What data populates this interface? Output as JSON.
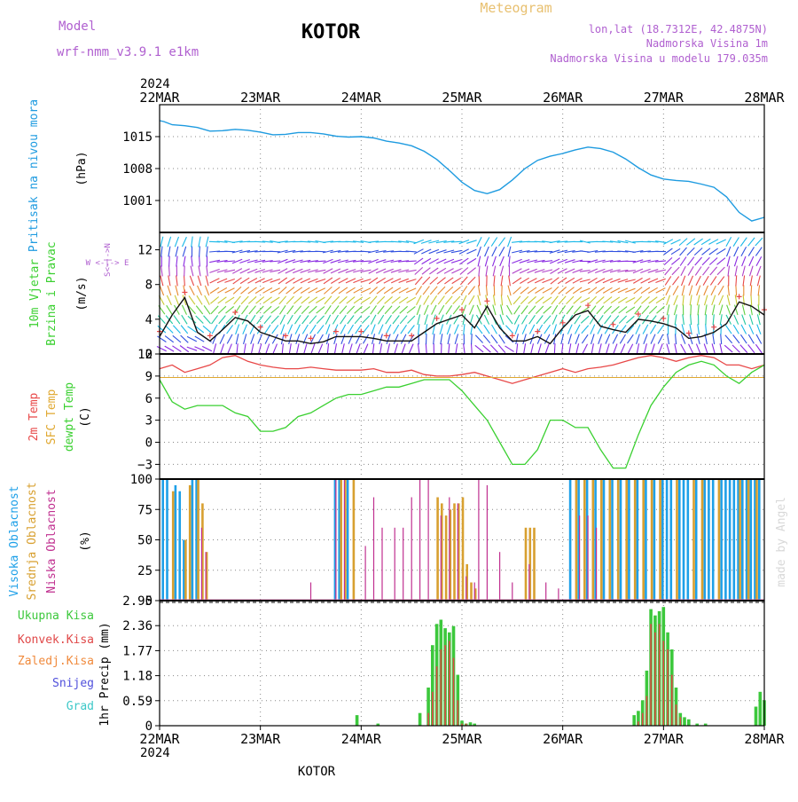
{
  "header": {
    "model_label": "Model",
    "model_name": "wrf-nmm_v3.9.1  e1km",
    "station": "KOTOR",
    "meteogram_label": "Meteogram",
    "lonlat": "lon,lat (18.7312E, 42.4875N)",
    "elev": "Nadmorska Visina 1m",
    "elev_model": "Nadmorska Visina u modelu 179.035m"
  },
  "footer": {
    "station": "KOTOR",
    "watermark": "made by Angel"
  },
  "time_axis": {
    "year": "2024",
    "labels": [
      "22MAR",
      "23MAR",
      "24MAR",
      "25MAR",
      "26MAR",
      "27MAR",
      "28MAR"
    ]
  },
  "panels": {
    "pressure": {
      "label1": "Pritisak na nivou mora",
      "unit": "(hPa)"
    },
    "wind": {
      "label1": "10m Vjetar",
      "label2": "Brzina i Pravac",
      "unit": "(m/s)",
      "compass": "W <-|-> E",
      "compass_v": "S<-|->N"
    },
    "temp": {
      "label1": "2m Temp",
      "label2": "SFC Temp",
      "label3": "dewpt Temp",
      "unit": "(C)"
    },
    "cloud": {
      "label1": "Visoka Oblacnost",
      "label2": "Srednja Oblacnost",
      "label3": "Niska Oblacnost",
      "unit": "(%)"
    },
    "precip": {
      "unit": "1hr Precip (mm)",
      "legend": [
        "Ukupna Kisa",
        "Konvek.Kisa",
        "Zaledj.Kisa",
        "Snijeg",
        "Grad"
      ]
    }
  },
  "colors": {
    "pressure": "#1e9be0",
    "temp2m": "#e84848",
    "sfc": "#e0a830",
    "dewpt": "#3ad030",
    "cloud_high": "#1ea0e8",
    "cloud_mid": "#d8a030",
    "cloud_low": "#c03090",
    "precip_total": "#3cc83c",
    "precip_conv": "#e04848",
    "legend_frozen": "#f08a3c",
    "legend_snow": "#5050dc",
    "legend_hail": "#3cc8c8",
    "purple_text": "#b060d0",
    "orange_text": "#e8c070"
  },
  "chart_data": [
    {
      "type": "line",
      "panel": "pressure",
      "x_unit": "hours since 22MAR 00UTC",
      "ylim": [
        994,
        1022
      ],
      "yticks": [
        "1001",
        "1008",
        "1015"
      ],
      "x": [
        0,
        1,
        3,
        6,
        9,
        12,
        15,
        18,
        21,
        24,
        27,
        30,
        33,
        36,
        39,
        42,
        45,
        48,
        51,
        54,
        57,
        60,
        63,
        66,
        69,
        72,
        75,
        78,
        81,
        84,
        87,
        90,
        93,
        96,
        99,
        102,
        105,
        108,
        111,
        114,
        117,
        120,
        123,
        126,
        129,
        132,
        135,
        138,
        141,
        144
      ],
      "values": [
        1018.5,
        1018.3,
        1017.6,
        1017.4,
        1017.0,
        1016.2,
        1016.3,
        1016.6,
        1016.4,
        1016.0,
        1015.4,
        1015.5,
        1015.9,
        1015.9,
        1015.6,
        1015.1,
        1014.9,
        1015.0,
        1014.7,
        1014.0,
        1013.6,
        1013.0,
        1011.8,
        1010.0,
        1007.6,
        1005.0,
        1003.2,
        1002.5,
        1003.4,
        1005.5,
        1008.0,
        1009.8,
        1010.7,
        1011.3,
        1012.1,
        1012.7,
        1012.4,
        1011.6,
        1010.1,
        1008.2,
        1006.6,
        1005.7,
        1005.4,
        1005.2,
        1004.6,
        1003.9,
        1001.8,
        998.4,
        996.5,
        997.3
      ]
    },
    {
      "type": "line",
      "panel": "wind",
      "ylim": [
        0,
        14
      ],
      "yticks": [
        "0",
        "4",
        "8",
        "12"
      ],
      "x": [
        0,
        3,
        6,
        9,
        12,
        15,
        18,
        21,
        24,
        27,
        30,
        33,
        36,
        39,
        42,
        45,
        48,
        51,
        54,
        57,
        60,
        63,
        66,
        69,
        72,
        75,
        78,
        81,
        84,
        87,
        90,
        93,
        96,
        99,
        102,
        105,
        108,
        111,
        114,
        117,
        120,
        123,
        126,
        129,
        132,
        135,
        138,
        141,
        144
      ],
      "values": [
        2.0,
        4.5,
        6.5,
        2.5,
        1.5,
        2.8,
        4.2,
        3.8,
        2.5,
        2.0,
        1.5,
        1.5,
        1.2,
        1.4,
        2.0,
        2.0,
        2.0,
        1.8,
        1.5,
        1.5,
        1.5,
        2.5,
        3.5,
        4.0,
        4.5,
        3.0,
        5.5,
        3.0,
        1.5,
        1.5,
        2.0,
        1.2,
        3.0,
        4.5,
        5.0,
        3.2,
        2.8,
        2.5,
        4.0,
        3.8,
        3.5,
        3.0,
        1.8,
        2.0,
        2.5,
        3.5,
        6.0,
        5.5,
        4.5
      ]
    },
    {
      "type": "line",
      "panel": "temp",
      "ylim": [
        -5,
        12
      ],
      "yticks": [
        "12",
        "9",
        "6",
        "3",
        "0",
        "−3"
      ],
      "x": [
        0,
        3,
        6,
        9,
        12,
        15,
        18,
        21,
        24,
        27,
        30,
        33,
        36,
        39,
        42,
        45,
        48,
        51,
        54,
        57,
        60,
        63,
        66,
        69,
        72,
        75,
        78,
        81,
        84,
        87,
        90,
        93,
        96,
        99,
        102,
        105,
        108,
        111,
        114,
        117,
        120,
        123,
        126,
        129,
        132,
        135,
        138,
        141,
        144
      ],
      "series": [
        {
          "name": "2m Temp",
          "color_key": "temp2m",
          "values": [
            10.0,
            10.5,
            9.5,
            10.0,
            10.5,
            11.5,
            11.8,
            11.0,
            10.5,
            10.2,
            10.0,
            10.0,
            10.2,
            10.0,
            9.8,
            9.8,
            9.8,
            10.0,
            9.5,
            9.5,
            9.8,
            9.2,
            9.0,
            9.0,
            9.2,
            9.5,
            9.0,
            8.5,
            8.0,
            8.5,
            9.0,
            9.5,
            10.0,
            9.5,
            10.0,
            10.2,
            10.5,
            11.0,
            11.5,
            11.8,
            11.5,
            11.0,
            11.5,
            11.8,
            11.5,
            10.5,
            10.5,
            10.0,
            10.5
          ]
        },
        {
          "name": "SFC Temp",
          "color_key": "sfc",
          "values": [
            8.8,
            8.8,
            8.8,
            8.8,
            8.8,
            8.8,
            8.8,
            8.8,
            8.8,
            8.8,
            8.8,
            8.8,
            8.8,
            8.8,
            8.8,
            8.8,
            8.8,
            8.8,
            8.8,
            8.8,
            8.8,
            8.8,
            8.8,
            8.8,
            8.8,
            8.8,
            8.8,
            8.8,
            8.8,
            8.8,
            8.8,
            8.8,
            8.8,
            8.8,
            8.8,
            8.8,
            8.8,
            8.8,
            8.8,
            8.8,
            8.8,
            8.8,
            8.8,
            8.8,
            8.8,
            8.8,
            8.8,
            8.8,
            8.8
          ]
        },
        {
          "name": "dewpt Temp",
          "color_key": "dewpt",
          "values": [
            8.5,
            5.5,
            4.5,
            5.0,
            5.0,
            5.0,
            4.0,
            3.5,
            1.5,
            1.5,
            2.0,
            3.5,
            4.0,
            5.0,
            6.0,
            6.5,
            6.5,
            7.0,
            7.5,
            7.5,
            8.0,
            8.5,
            8.5,
            8.5,
            7.0,
            5.0,
            3.0,
            0.0,
            -3.0,
            -3.0,
            -1.0,
            3.0,
            3.0,
            2.0,
            2.0,
            -1.0,
            -3.5,
            -3.5,
            1.0,
            5.0,
            7.5,
            9.5,
            10.5,
            11.0,
            10.5,
            9.0,
            8.0,
            9.5,
            10.5
          ]
        }
      ]
    },
    {
      "type": "bar",
      "panel": "cloud",
      "ylim": [
        0,
        100
      ],
      "yticks": [
        "0",
        "25",
        "50",
        "75",
        "100"
      ],
      "series": [
        {
          "name": "Visoka Oblacnost",
          "color_key": "cloud_high",
          "x": [
            1,
            2,
            4,
            5,
            6,
            8,
            9,
            42,
            43,
            45,
            98,
            100,
            102,
            104,
            106,
            108,
            110,
            112,
            114,
            116,
            118,
            120,
            121,
            122,
            124,
            125,
            126,
            128,
            130,
            131,
            132,
            134,
            135,
            136,
            137,
            138,
            139,
            140,
            141,
            142,
            143
          ],
          "values": [
            100,
            100,
            95,
            90,
            50,
            100,
            100,
            100,
            100,
            100,
            100,
            100,
            100,
            100,
            100,
            100,
            100,
            100,
            100,
            100,
            100,
            100,
            100,
            100,
            100,
            100,
            100,
            100,
            100,
            100,
            100,
            100,
            100,
            100,
            100,
            100,
            100,
            100,
            100,
            100,
            100
          ]
        },
        {
          "name": "Srednja Oblacnost",
          "color_key": "cloud_mid",
          "x": [
            3,
            6,
            7,
            9,
            10,
            11,
            43,
            44,
            46,
            66,
            67,
            68,
            69,
            70,
            71,
            72,
            73,
            74,
            75,
            87,
            88,
            89,
            99,
            101,
            103,
            105,
            107,
            109,
            111,
            113,
            115,
            117,
            119,
            123,
            127,
            129,
            133,
            138,
            140,
            142
          ],
          "values": [
            90,
            50,
            95,
            100,
            80,
            40,
            100,
            100,
            100,
            85,
            80,
            70,
            75,
            80,
            80,
            85,
            30,
            15,
            10,
            60,
            60,
            60,
            100,
            100,
            100,
            100,
            100,
            100,
            100,
            100,
            100,
            100,
            100,
            100,
            100,
            100,
            100,
            100,
            100,
            100
          ]
        },
        {
          "name": "Niska Oblacnost",
          "color_key": "cloud_low",
          "x": [
            10,
            11,
            36,
            42,
            44,
            49,
            51,
            53,
            56,
            58,
            60,
            62,
            64,
            67,
            69,
            71,
            73,
            75,
            76,
            78,
            81,
            84,
            88,
            92,
            95,
            100,
            102,
            104
          ],
          "values": [
            60,
            40,
            15,
            100,
            100,
            45,
            85,
            60,
            60,
            60,
            85,
            100,
            100,
            70,
            85,
            80,
            20,
            15,
            100,
            95,
            40,
            15,
            30,
            15,
            10,
            70,
            70,
            60
          ]
        }
      ]
    },
    {
      "type": "bar",
      "panel": "precip",
      "ylim": [
        0,
        2.95
      ],
      "yticks": [
        "0",
        "0.59",
        "1.18",
        "1.77",
        "2.36",
        "2.95"
      ],
      "x": [
        47,
        52,
        62,
        64,
        65,
        66,
        67,
        68,
        69,
        70,
        71,
        72,
        73,
        74,
        75,
        113,
        114,
        115,
        116,
        117,
        118,
        119,
        120,
        121,
        122,
        123,
        124,
        125,
        126,
        128,
        130,
        142,
        143,
        144
      ],
      "series": [
        {
          "name": "Ukupna Kisa",
          "color_key": "precip_total",
          "values": [
            0.25,
            0.05,
            0.3,
            0.9,
            1.9,
            2.4,
            2.5,
            2.3,
            2.2,
            2.35,
            1.2,
            0.12,
            0.05,
            0.08,
            0.05,
            0.25,
            0.35,
            0.6,
            1.3,
            2.75,
            2.6,
            2.7,
            2.8,
            2.2,
            1.8,
            0.9,
            0.3,
            0.2,
            0.15,
            0.05,
            0.05,
            0.45,
            0.8,
            0.6
          ]
        },
        {
          "name": "Konvek.Kisa",
          "color_key": "precip_conv",
          "values": [
            0,
            0,
            0,
            0.3,
            0.8,
            1.4,
            1.8,
            1.9,
            2.0,
            1.6,
            0.6,
            0.05,
            0.05,
            0,
            0,
            0,
            0.1,
            0.3,
            0.7,
            2.4,
            2.2,
            2.4,
            2.0,
            1.8,
            1.2,
            0.5,
            0.2,
            0,
            0,
            0,
            0,
            0,
            0,
            0
          ]
        }
      ]
    }
  ]
}
